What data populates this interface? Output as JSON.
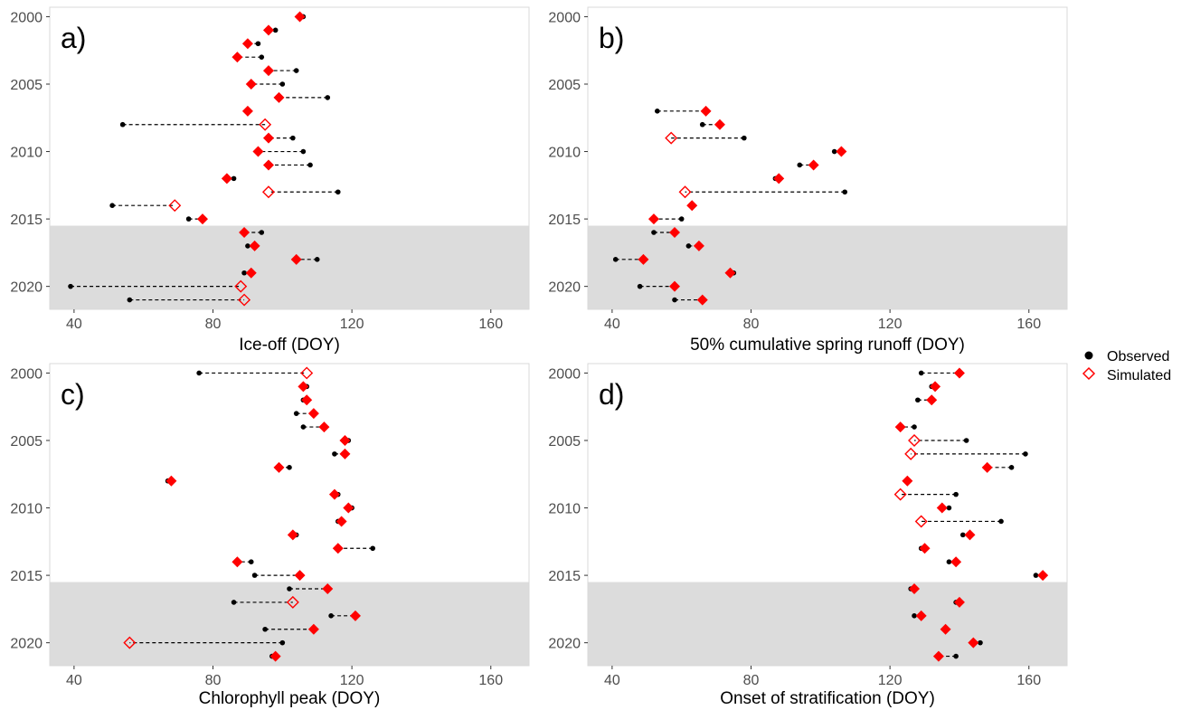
{
  "colors": {
    "observed": "#000000",
    "simulated": "#ff0000",
    "shade": "#dcdcdc",
    "panel_border": "#d9d9d9",
    "connector": "#000000"
  },
  "legend": {
    "observed": "Observed",
    "simulated": "Simulated",
    "position": "right"
  },
  "y_tick_labels": [
    "2000",
    "2005",
    "2010",
    "2015",
    "2020"
  ],
  "x_tick_labels": [
    "40",
    "80",
    "120",
    "160"
  ],
  "chart_data": [
    {
      "type": "scatter",
      "panel": "a)",
      "xlabel": "Ice-off (DOY)",
      "xlim": [
        33,
        171
      ],
      "ylim": [
        2021.7,
        1999.3
      ],
      "xticks": [
        40,
        80,
        120,
        160
      ],
      "yticks": [
        2000,
        2005,
        2010,
        2015,
        2020
      ],
      "shaded_from_year": 2015.5,
      "grid": false,
      "series": [
        {
          "name": "Observed",
          "values": [
            {
              "year": 2000,
              "doy": 106
            },
            {
              "year": 2001,
              "doy": 98
            },
            {
              "year": 2002,
              "doy": 93
            },
            {
              "year": 2003,
              "doy": 94
            },
            {
              "year": 2004,
              "doy": 104
            },
            {
              "year": 2005,
              "doy": 100
            },
            {
              "year": 2006,
              "doy": 113
            },
            {
              "year": 2007,
              "doy": 90
            },
            {
              "year": 2008,
              "doy": 54
            },
            {
              "year": 2009,
              "doy": 103
            },
            {
              "year": 2010,
              "doy": 106
            },
            {
              "year": 2011,
              "doy": 108
            },
            {
              "year": 2012,
              "doy": 86
            },
            {
              "year": 2013,
              "doy": 116
            },
            {
              "year": 2014,
              "doy": 51
            },
            {
              "year": 2015,
              "doy": 73
            },
            {
              "year": 2016,
              "doy": 94
            },
            {
              "year": 2017,
              "doy": 90
            },
            {
              "year": 2018,
              "doy": 110
            },
            {
              "year": 2019,
              "doy": 89
            },
            {
              "year": 2020,
              "doy": 39
            },
            {
              "year": 2021,
              "doy": 56
            }
          ]
        },
        {
          "name": "Simulated",
          "values": [
            {
              "year": 2000,
              "doy": 105,
              "filled": true
            },
            {
              "year": 2001,
              "doy": 96,
              "filled": true
            },
            {
              "year": 2002,
              "doy": 90,
              "filled": true
            },
            {
              "year": 2003,
              "doy": 87,
              "filled": true
            },
            {
              "year": 2004,
              "doy": 96,
              "filled": true
            },
            {
              "year": 2005,
              "doy": 91,
              "filled": true
            },
            {
              "year": 2006,
              "doy": 99,
              "filled": true
            },
            {
              "year": 2007,
              "doy": 90,
              "filled": true
            },
            {
              "year": 2008,
              "doy": 95,
              "filled": false
            },
            {
              "year": 2009,
              "doy": 96,
              "filled": true
            },
            {
              "year": 2010,
              "doy": 93,
              "filled": true
            },
            {
              "year": 2011,
              "doy": 96,
              "filled": true
            },
            {
              "year": 2012,
              "doy": 84,
              "filled": true
            },
            {
              "year": 2013,
              "doy": 96,
              "filled": false
            },
            {
              "year": 2014,
              "doy": 69,
              "filled": false
            },
            {
              "year": 2015,
              "doy": 77,
              "filled": true
            },
            {
              "year": 2016,
              "doy": 89,
              "filled": true
            },
            {
              "year": 2017,
              "doy": 92,
              "filled": true
            },
            {
              "year": 2018,
              "doy": 104,
              "filled": true
            },
            {
              "year": 2019,
              "doy": 91,
              "filled": true
            },
            {
              "year": 2020,
              "doy": 88,
              "filled": false
            },
            {
              "year": 2021,
              "doy": 89,
              "filled": false
            }
          ]
        }
      ]
    },
    {
      "type": "scatter",
      "panel": "b)",
      "xlabel": "50% cumulative spring runoff (DOY)",
      "xlim": [
        33,
        171
      ],
      "ylim": [
        2021.7,
        1999.3
      ],
      "xticks": [
        40,
        80,
        120,
        160
      ],
      "yticks": [
        2000,
        2005,
        2010,
        2015,
        2020
      ],
      "shaded_from_year": 2015.5,
      "grid": false,
      "series": [
        {
          "name": "Observed",
          "values": [
            {
              "year": 2007,
              "doy": 53
            },
            {
              "year": 2008,
              "doy": 66
            },
            {
              "year": 2009,
              "doy": 78
            },
            {
              "year": 2010,
              "doy": 104
            },
            {
              "year": 2011,
              "doy": 94
            },
            {
              "year": 2012,
              "doy": 87
            },
            {
              "year": 2013,
              "doy": 107
            },
            {
              "year": 2014,
              "doy": 63
            },
            {
              "year": 2015,
              "doy": 60
            },
            {
              "year": 2016,
              "doy": 52
            },
            {
              "year": 2017,
              "doy": 62
            },
            {
              "year": 2018,
              "doy": 41
            },
            {
              "year": 2019,
              "doy": 75
            },
            {
              "year": 2020,
              "doy": 48
            },
            {
              "year": 2021,
              "doy": 58
            }
          ]
        },
        {
          "name": "Simulated",
          "values": [
            {
              "year": 2007,
              "doy": 67,
              "filled": true
            },
            {
              "year": 2008,
              "doy": 71,
              "filled": true
            },
            {
              "year": 2009,
              "doy": 57,
              "filled": false
            },
            {
              "year": 2010,
              "doy": 106,
              "filled": true
            },
            {
              "year": 2011,
              "doy": 98,
              "filled": true
            },
            {
              "year": 2012,
              "doy": 88,
              "filled": true
            },
            {
              "year": 2013,
              "doy": 61,
              "filled": false
            },
            {
              "year": 2014,
              "doy": 63,
              "filled": true
            },
            {
              "year": 2015,
              "doy": 52,
              "filled": true
            },
            {
              "year": 2016,
              "doy": 58,
              "filled": true
            },
            {
              "year": 2017,
              "doy": 65,
              "filled": true
            },
            {
              "year": 2018,
              "doy": 49,
              "filled": true
            },
            {
              "year": 2019,
              "doy": 74,
              "filled": true
            },
            {
              "year": 2020,
              "doy": 58,
              "filled": true
            },
            {
              "year": 2021,
              "doy": 66,
              "filled": true
            }
          ]
        }
      ]
    },
    {
      "type": "scatter",
      "panel": "c)",
      "xlabel": "Chlorophyll peak (DOY)",
      "xlim": [
        33,
        171
      ],
      "ylim": [
        2021.7,
        1999.3
      ],
      "xticks": [
        40,
        80,
        120,
        160
      ],
      "yticks": [
        2000,
        2005,
        2010,
        2015,
        2020
      ],
      "shaded_from_year": 2015.5,
      "grid": false,
      "series": [
        {
          "name": "Observed",
          "values": [
            {
              "year": 2000,
              "doy": 76
            },
            {
              "year": 2001,
              "doy": 107
            },
            {
              "year": 2002,
              "doy": 106
            },
            {
              "year": 2003,
              "doy": 104
            },
            {
              "year": 2004,
              "doy": 106
            },
            {
              "year": 2005,
              "doy": 119
            },
            {
              "year": 2006,
              "doy": 115
            },
            {
              "year": 2007,
              "doy": 102
            },
            {
              "year": 2008,
              "doy": 67
            },
            {
              "year": 2009,
              "doy": 116
            },
            {
              "year": 2010,
              "doy": 120
            },
            {
              "year": 2011,
              "doy": 116
            },
            {
              "year": 2012,
              "doy": 104
            },
            {
              "year": 2013,
              "doy": 126
            },
            {
              "year": 2014,
              "doy": 91
            },
            {
              "year": 2015,
              "doy": 92
            },
            {
              "year": 2016,
              "doy": 102
            },
            {
              "year": 2017,
              "doy": 86
            },
            {
              "year": 2018,
              "doy": 114
            },
            {
              "year": 2019,
              "doy": 95
            },
            {
              "year": 2020,
              "doy": 100
            },
            {
              "year": 2021,
              "doy": 97
            }
          ]
        },
        {
          "name": "Simulated",
          "values": [
            {
              "year": 2000,
              "doy": 107,
              "filled": false
            },
            {
              "year": 2001,
              "doy": 106,
              "filled": true
            },
            {
              "year": 2002,
              "doy": 107,
              "filled": true
            },
            {
              "year": 2003,
              "doy": 109,
              "filled": true
            },
            {
              "year": 2004,
              "doy": 112,
              "filled": true
            },
            {
              "year": 2005,
              "doy": 118,
              "filled": true
            },
            {
              "year": 2006,
              "doy": 118,
              "filled": true
            },
            {
              "year": 2007,
              "doy": 99,
              "filled": true
            },
            {
              "year": 2008,
              "doy": 68,
              "filled": true
            },
            {
              "year": 2009,
              "doy": 115,
              "filled": true
            },
            {
              "year": 2010,
              "doy": 119,
              "filled": true
            },
            {
              "year": 2011,
              "doy": 117,
              "filled": true
            },
            {
              "year": 2012,
              "doy": 103,
              "filled": true
            },
            {
              "year": 2013,
              "doy": 116,
              "filled": true
            },
            {
              "year": 2014,
              "doy": 87,
              "filled": true
            },
            {
              "year": 2015,
              "doy": 105,
              "filled": true
            },
            {
              "year": 2016,
              "doy": 113,
              "filled": true
            },
            {
              "year": 2017,
              "doy": 103,
              "filled": false
            },
            {
              "year": 2018,
              "doy": 121,
              "filled": true
            },
            {
              "year": 2019,
              "doy": 109,
              "filled": true
            },
            {
              "year": 2020,
              "doy": 56,
              "filled": false
            },
            {
              "year": 2021,
              "doy": 98,
              "filled": true
            }
          ]
        }
      ]
    },
    {
      "type": "scatter",
      "panel": "d)",
      "xlabel": "Onset of stratification (DOY)",
      "xlim": [
        33,
        171
      ],
      "ylim": [
        2021.7,
        1999.3
      ],
      "xticks": [
        40,
        80,
        120,
        160
      ],
      "yticks": [
        2000,
        2005,
        2010,
        2015,
        2020
      ],
      "shaded_from_year": 2015.5,
      "grid": false,
      "series": [
        {
          "name": "Observed",
          "values": [
            {
              "year": 2000,
              "doy": 129
            },
            {
              "year": 2001,
              "doy": 132
            },
            {
              "year": 2002,
              "doy": 128
            },
            {
              "year": 2004,
              "doy": 127
            },
            {
              "year": 2005,
              "doy": 142
            },
            {
              "year": 2006,
              "doy": 159
            },
            {
              "year": 2007,
              "doy": 155
            },
            {
              "year": 2008,
              "doy": 125
            },
            {
              "year": 2009,
              "doy": 139
            },
            {
              "year": 2010,
              "doy": 137
            },
            {
              "year": 2011,
              "doy": 152
            },
            {
              "year": 2012,
              "doy": 141
            },
            {
              "year": 2013,
              "doy": 129
            },
            {
              "year": 2014,
              "doy": 137
            },
            {
              "year": 2015,
              "doy": 162
            },
            {
              "year": 2016,
              "doy": 126
            },
            {
              "year": 2017,
              "doy": 139
            },
            {
              "year": 2018,
              "doy": 127
            },
            {
              "year": 2019,
              "doy": 136
            },
            {
              "year": 2020,
              "doy": 146
            },
            {
              "year": 2021,
              "doy": 139
            }
          ]
        },
        {
          "name": "Simulated",
          "values": [
            {
              "year": 2000,
              "doy": 140,
              "filled": true
            },
            {
              "year": 2001,
              "doy": 133,
              "filled": true
            },
            {
              "year": 2002,
              "doy": 132,
              "filled": true
            },
            {
              "year": 2004,
              "doy": 123,
              "filled": true
            },
            {
              "year": 2005,
              "doy": 127,
              "filled": false
            },
            {
              "year": 2006,
              "doy": 126,
              "filled": false
            },
            {
              "year": 2007,
              "doy": 148,
              "filled": true
            },
            {
              "year": 2008,
              "doy": 125,
              "filled": true
            },
            {
              "year": 2009,
              "doy": 123,
              "filled": false
            },
            {
              "year": 2010,
              "doy": 135,
              "filled": true
            },
            {
              "year": 2011,
              "doy": 129,
              "filled": false
            },
            {
              "year": 2012,
              "doy": 143,
              "filled": true
            },
            {
              "year": 2013,
              "doy": 130,
              "filled": true
            },
            {
              "year": 2014,
              "doy": 139,
              "filled": true
            },
            {
              "year": 2015,
              "doy": 164,
              "filled": true
            },
            {
              "year": 2016,
              "doy": 127,
              "filled": true
            },
            {
              "year": 2017,
              "doy": 140,
              "filled": true
            },
            {
              "year": 2018,
              "doy": 129,
              "filled": true
            },
            {
              "year": 2019,
              "doy": 136,
              "filled": true
            },
            {
              "year": 2020,
              "doy": 144,
              "filled": true
            },
            {
              "year": 2021,
              "doy": 134,
              "filled": true
            }
          ]
        }
      ]
    }
  ]
}
